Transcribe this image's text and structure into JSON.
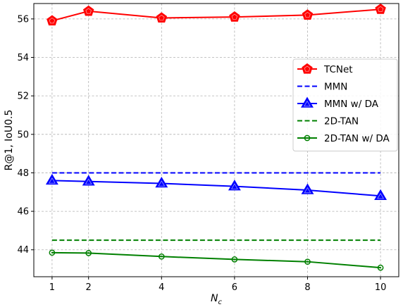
{
  "chart_data": {
    "type": "line",
    "xlabel": "N",
    "xlabel_sub": "c",
    "ylabel": "R@1, IoU0.5",
    "xlim": [
      0.5,
      10.5
    ],
    "ylim": [
      42.6,
      56.8
    ],
    "xticks": [
      1,
      2,
      4,
      6,
      8,
      10
    ],
    "yticks": [
      44,
      46,
      48,
      50,
      52,
      54,
      56
    ],
    "grid": true,
    "legend_position": "center-right",
    "series": [
      {
        "name": "TCNet",
        "style": "solid",
        "marker": "pentagon",
        "color": "#ff0000",
        "x": [
          1,
          2,
          4,
          6,
          8,
          10
        ],
        "y": [
          55.9,
          56.4,
          56.05,
          56.1,
          56.2,
          56.5
        ]
      },
      {
        "name": "MMN",
        "style": "dashed",
        "marker": "none",
        "color": "#0000ff",
        "x": [
          1,
          10
        ],
        "y": [
          48.0,
          48.0
        ]
      },
      {
        "name": "MMN w/ DA",
        "style": "solid",
        "marker": "triangle",
        "color": "#0000ff",
        "x": [
          1,
          2,
          4,
          6,
          8,
          10
        ],
        "y": [
          47.6,
          47.55,
          47.45,
          47.3,
          47.1,
          46.8
        ]
      },
      {
        "name": "2D-TAN",
        "style": "dashed",
        "marker": "none",
        "color": "#008000",
        "x": [
          1,
          10
        ],
        "y": [
          44.5,
          44.5
        ]
      },
      {
        "name": "2D-TAN w/ DA",
        "style": "solid",
        "marker": "circle-dot",
        "color": "#008000",
        "x": [
          1,
          2,
          4,
          6,
          8,
          10
        ],
        "y": [
          43.85,
          43.83,
          43.65,
          43.5,
          43.38,
          43.07
        ]
      }
    ]
  }
}
